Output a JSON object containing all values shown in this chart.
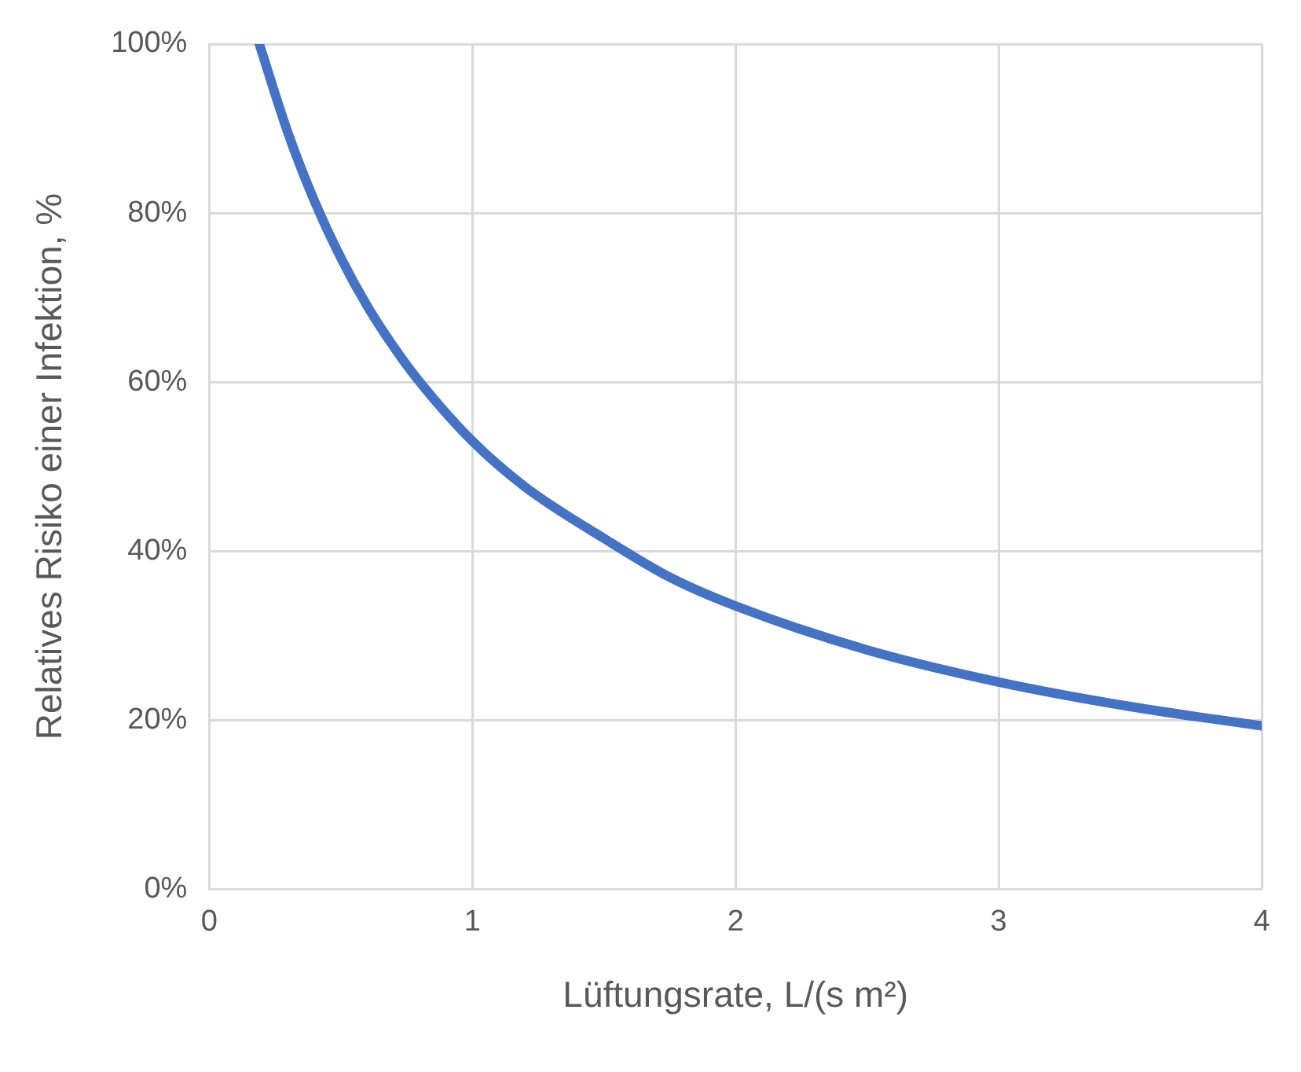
{
  "chart_data": {
    "type": "line",
    "xlabel": "Lüftungsrate, L/(s m²)",
    "ylabel": "Relatives Risiko einer Infektion, %",
    "x": [
      0.19,
      0.3,
      0.4,
      0.5,
      0.6,
      0.7,
      0.8,
      1.0,
      1.2,
      1.5,
      1.75,
      2.0,
      2.5,
      3.0,
      3.5,
      4.0
    ],
    "series": [
      {
        "color": "#4472c4",
        "values": [
          100,
          89.4,
          81.4,
          74.7,
          69.0,
          64.2,
          60.0,
          53.0,
          47.6,
          41.5,
          36.9,
          33.5,
          28.3,
          24.5,
          21.6,
          19.3
        ]
      }
    ],
    "xlim": [
      0,
      4
    ],
    "xticks": [
      0,
      1,
      2,
      3,
      4
    ],
    "ylim": [
      0,
      100
    ],
    "yticks": [
      {
        "value": 0,
        "label": "0%"
      },
      {
        "value": 20,
        "label": "20%"
      },
      {
        "value": 40,
        "label": "40%"
      },
      {
        "value": 60,
        "label": "60%"
      },
      {
        "value": 80,
        "label": "80%"
      },
      {
        "value": 100,
        "label": "100%"
      }
    ],
    "grid": true,
    "legend": false,
    "marker": "none",
    "line_style": "solid"
  }
}
